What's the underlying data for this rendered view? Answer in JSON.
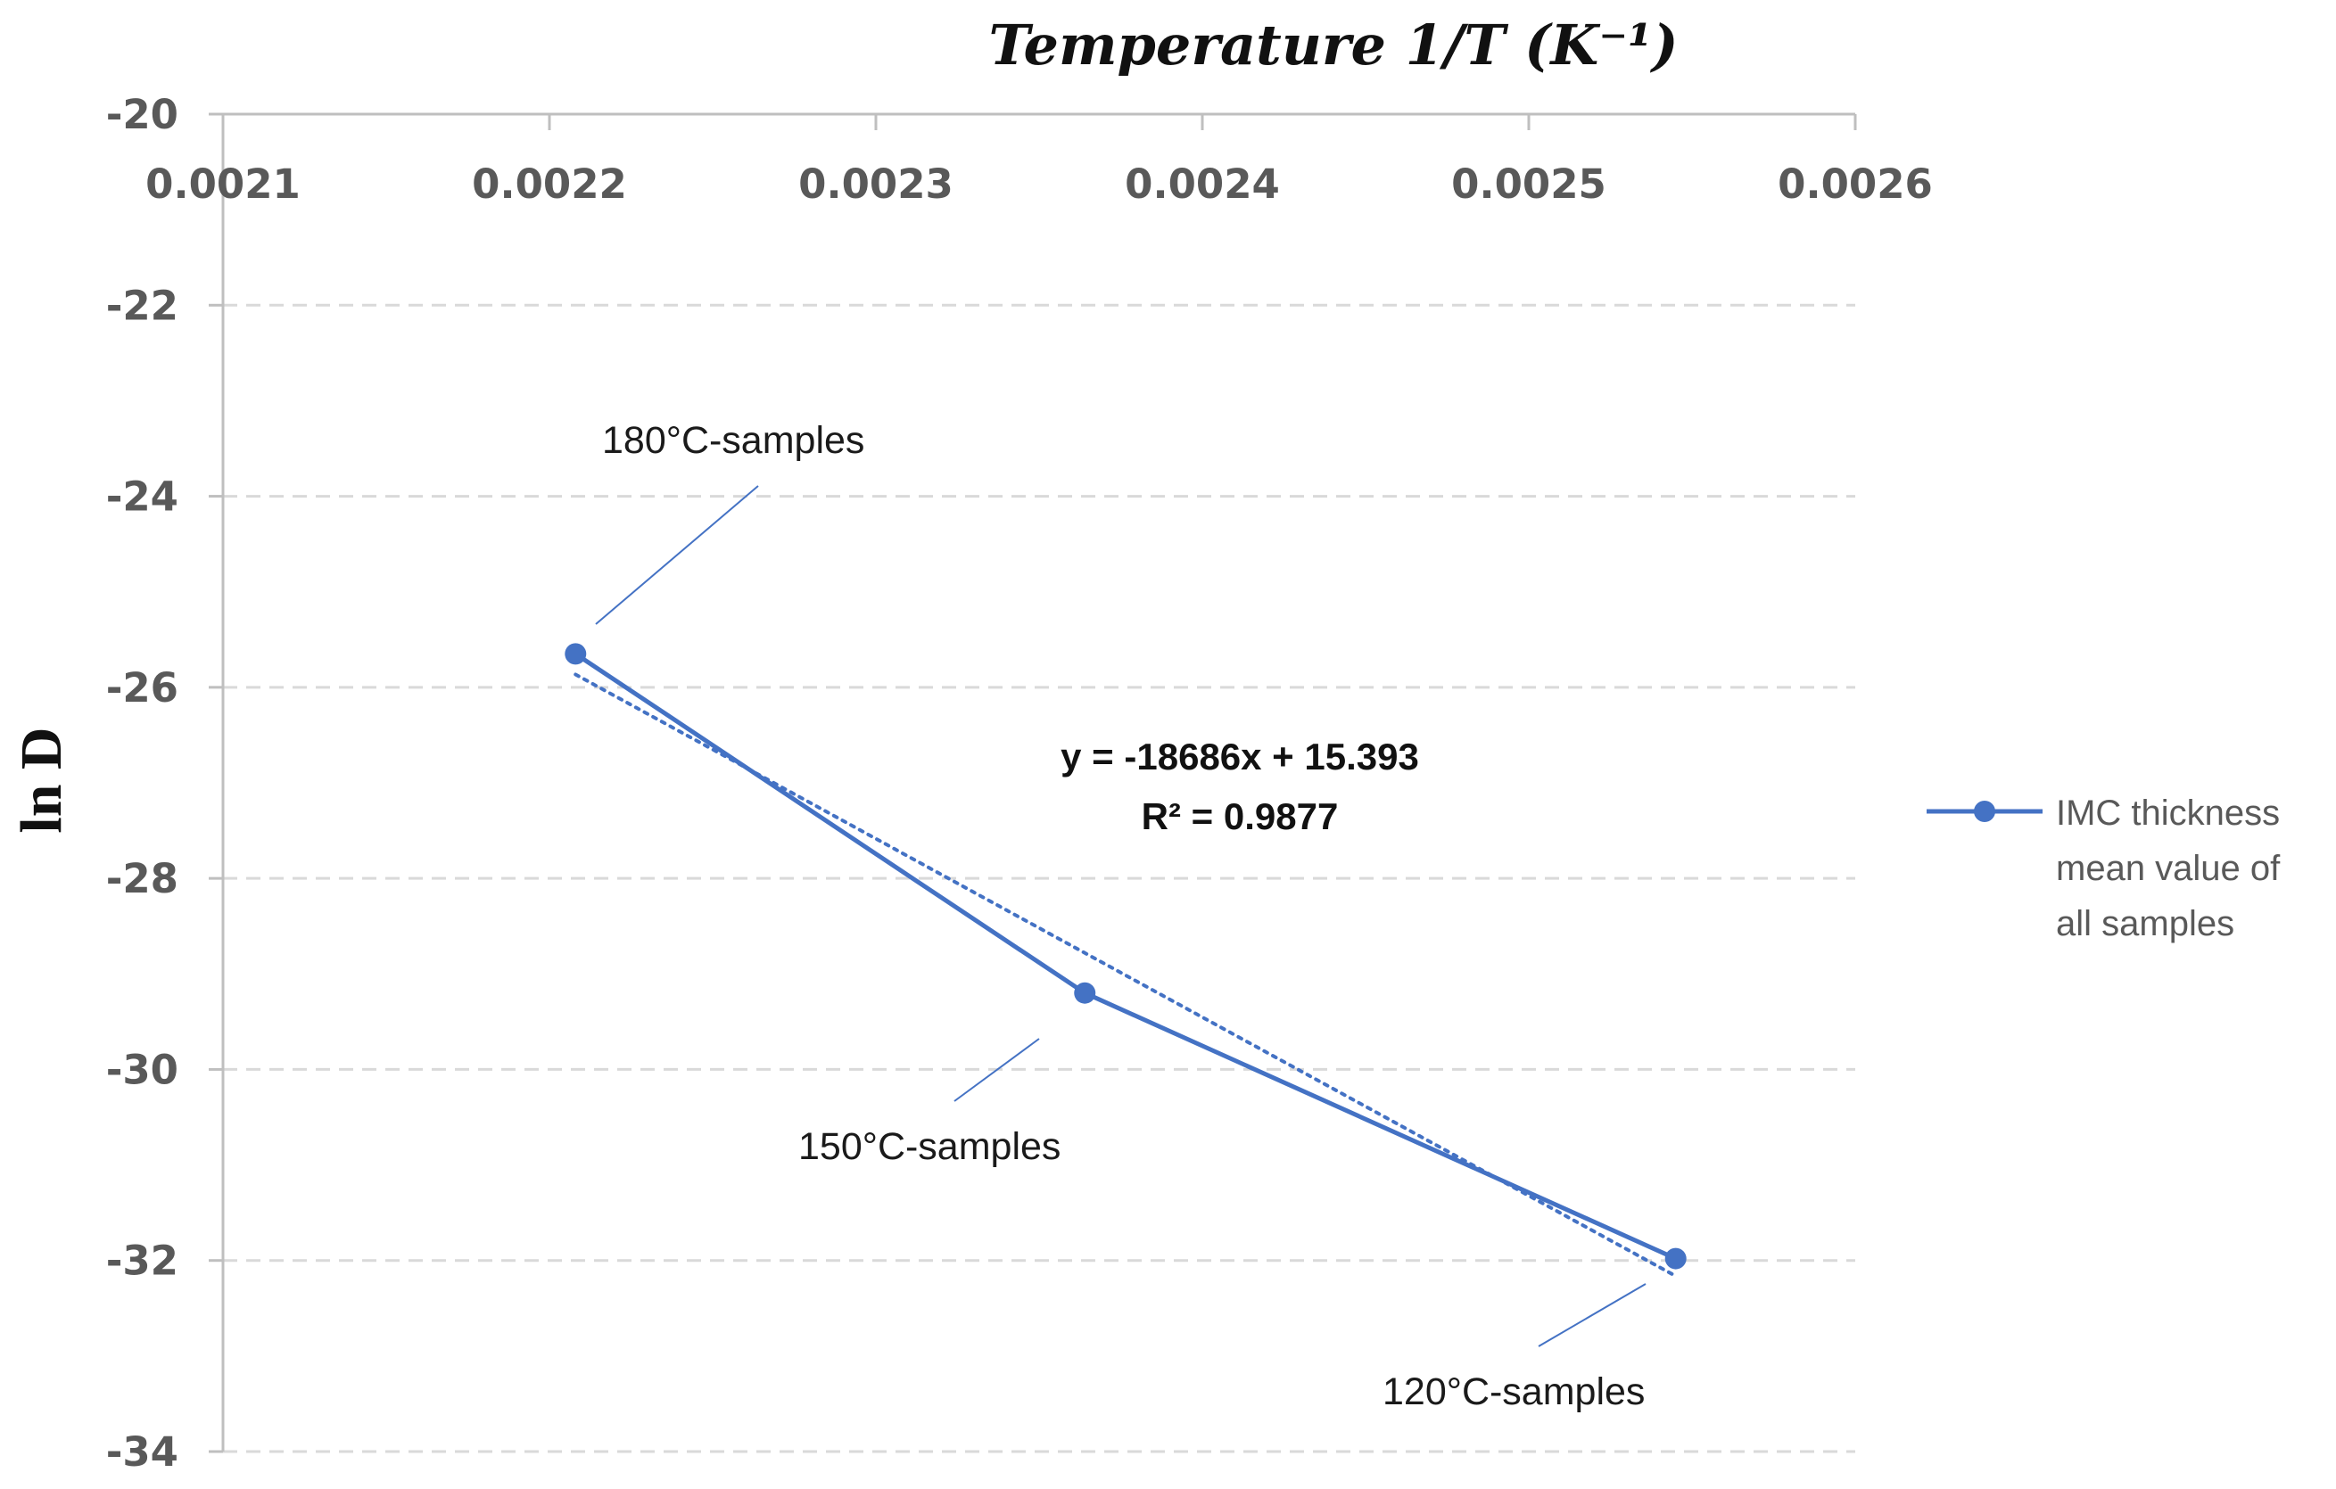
{
  "chart_data": {
    "type": "line",
    "xlabel": "Temperature 1/T (K⁻¹)",
    "ylabel": "ln D",
    "xlim": [
      0.0021,
      0.0026
    ],
    "ylim": [
      -34,
      -20
    ],
    "x_ticks": [
      0.0021,
      0.0022,
      0.0023,
      0.0024,
      0.0025,
      0.0026
    ],
    "x_tick_labels": [
      "0.0021",
      "0.0022",
      "0.0023",
      "0.0024",
      "0.0025",
      "0.0026"
    ],
    "y_ticks": [
      -20,
      -22,
      -24,
      -26,
      -28,
      -30,
      -32,
      -34
    ],
    "y_tick_labels": [
      "-20",
      "-22",
      "-24",
      "-26",
      "-28",
      "-30",
      "-32",
      "-34"
    ],
    "x_axis_position": "top",
    "grid": "horizontal dashed",
    "legend_position": "right",
    "colors": {
      "series": "#4472c4",
      "grid": "#d9d9d9",
      "axis": "#bfbfbf"
    },
    "series": [
      {
        "name": "IMC thickness mean value of all samples",
        "legend_lines": [
          "IMC thickness",
          "mean value of",
          "all samples"
        ],
        "x": [
          0.002208,
          0.002364,
          0.002545
        ],
        "y": [
          -25.65,
          -29.2,
          -31.98
        ]
      }
    ],
    "trendline": {
      "type": "linear",
      "style": "dotted",
      "slope": -18686,
      "intercept": 15.393,
      "equation": "y = -18686x + 15.393",
      "r_squared": "R² = 0.9877"
    },
    "annotations": [
      {
        "text": "180°C-samples"
      },
      {
        "text": "150°C-samples"
      },
      {
        "text": "120°C-samples"
      }
    ]
  }
}
